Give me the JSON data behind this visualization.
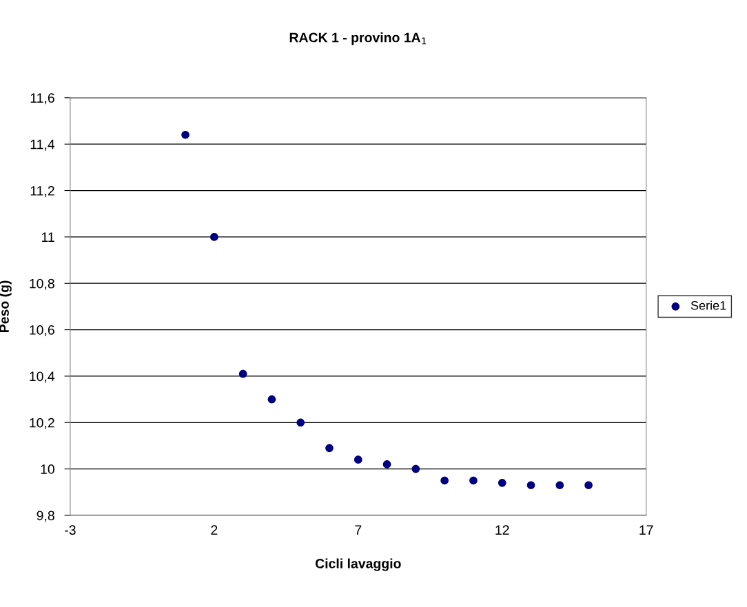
{
  "chart_data": {
    "type": "scatter",
    "title": "RACK 1 - provino 1A$_{1}$",
    "xlabel": "Cicli lavaggio",
    "ylabel": "Peso (g)",
    "x": [
      1,
      2,
      3,
      4,
      5,
      6,
      7,
      8,
      9,
      10,
      11,
      12,
      13,
      14,
      15
    ],
    "series": [
      {
        "name": "Serie1",
        "color": "#000080",
        "values": [
          11.44,
          11.0,
          10.41,
          10.3,
          10.2,
          10.09,
          10.04,
          10.02,
          10.0,
          9.95,
          9.95,
          9.94,
          9.93,
          9.93,
          9.93
        ]
      }
    ],
    "xlim": [
      -3,
      17
    ],
    "xticks": [
      -3,
      2,
      7,
      12,
      17
    ],
    "ylim": [
      9.8,
      11.6
    ],
    "yticks": [
      {
        "value": 9.8,
        "label": "9,8"
      },
      {
        "value": 10,
        "label": "10"
      },
      {
        "value": 10.2,
        "label": "10,2"
      },
      {
        "value": 10.4,
        "label": "10,4"
      },
      {
        "value": 10.6,
        "label": "10,6"
      },
      {
        "value": 10.8,
        "label": "10,8"
      },
      {
        "value": 11,
        "label": "11"
      },
      {
        "value": 11.2,
        "label": "11,2"
      },
      {
        "value": 11.4,
        "label": "11,4"
      },
      {
        "value": 11.6,
        "label": "11,6"
      }
    ],
    "grid": "y",
    "legend": "right",
    "marker": "circle"
  }
}
